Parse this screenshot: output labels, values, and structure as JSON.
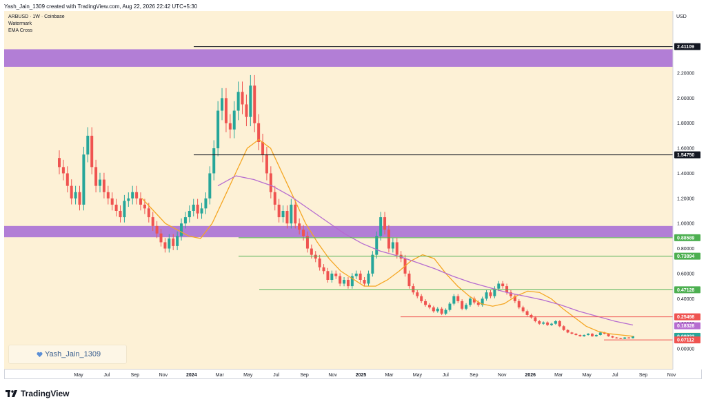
{
  "header": {
    "created_by": "Yash_Jain_1309 created with TradingView.com, Aug 22, 2026 22:42 UTC+5:30"
  },
  "legend": {
    "symbol": "ARBUSD · 1W · Coinbase",
    "line2": "Watermark",
    "line3": "EMA Cross"
  },
  "watermark": {
    "text": "Yash_Jain_1309",
    "icon": "heart-icon"
  },
  "currency_label": "USD",
  "brand": {
    "text": "TradingView",
    "icon": "tradingview-logo-icon"
  },
  "colors": {
    "background": "#fdf1d6",
    "up": "#26a69a",
    "down": "#ef5350",
    "ema_fast": "#f5a623",
    "ema_slow": "#b66cd0",
    "zone": "#a46ad6",
    "support": "#4caf50",
    "resistance_line": "#131722",
    "red_line": "#ef5350"
  },
  "chart_data": {
    "type": "candlestick",
    "symbol": "ARBUSD",
    "timeframe": "1W",
    "exchange": "Coinbase",
    "ylim": [
      0,
      2.5
    ],
    "y_ticks": [
      "2.20000",
      "2.00000",
      "1.80000",
      "1.60000",
      "1.40000",
      "1.20000",
      "1.00000",
      "0.80000",
      "0.60000",
      "0.40000",
      "0.20000",
      "0.00000"
    ],
    "x_ticks": [
      "May",
      "Jul",
      "Sep",
      "Nov",
      "2024",
      "Mar",
      "May",
      "Jul",
      "Sep",
      "Nov",
      "2025",
      "Mar",
      "May",
      "Jul",
      "Sep",
      "Nov",
      "2026",
      "Mar",
      "May",
      "Jul",
      "Sep",
      "Nov"
    ],
    "bold_x_ticks": [
      "2024",
      "2025",
      "2026"
    ],
    "price_labels": [
      {
        "text": "2.41109",
        "value": 2.41109,
        "color": "#131722",
        "bg": "#131722"
      },
      {
        "text": "1.54750",
        "value": 1.5475,
        "color": "#131722",
        "bg": "#131722"
      },
      {
        "text": "0.88589",
        "value": 0.88589,
        "color": "#4caf50",
        "bg": "#4caf50"
      },
      {
        "text": "0.73894",
        "value": 0.73894,
        "color": "#4caf50",
        "bg": "#4caf50"
      },
      {
        "text": "0.47128",
        "value": 0.47128,
        "color": "#4caf50",
        "bg": "#4caf50"
      },
      {
        "text": "0.25498",
        "value": 0.25498,
        "color": "#ef5350",
        "bg": "#ef5350"
      },
      {
        "text": "0.18328",
        "value": 0.18328,
        "color": "#b66cd0",
        "bg": "#b66cd0"
      },
      {
        "text": "0.09996",
        "value": 0.09996,
        "color": "#f5a623",
        "bg": "#f5a623"
      },
      {
        "text": "0.09933",
        "value": 0.09933,
        "color": "#26a69a",
        "bg": "#26a69a"
      },
      {
        "text": "0.07112",
        "value": 0.07112,
        "color": "#ef5350",
        "bg": "#ef5350"
      }
    ],
    "zones": [
      {
        "from": 2.25,
        "to": 2.39
      },
      {
        "from": 0.89,
        "to": 0.98
      }
    ],
    "weekly_closes": [
      1.45,
      1.4,
      1.3,
      1.2,
      1.25,
      1.15,
      1.55,
      1.7,
      1.45,
      1.3,
      1.35,
      1.25,
      1.2,
      1.15,
      1.1,
      1.05,
      1.18,
      1.2,
      1.25,
      1.2,
      1.15,
      1.12,
      1.05,
      0.98,
      0.92,
      0.85,
      0.8,
      0.88,
      0.82,
      0.9,
      1.0,
      1.05,
      1.1,
      1.15,
      1.08,
      1.12,
      1.2,
      1.4,
      1.6,
      1.9,
      2.0,
      1.8,
      1.75,
      1.9,
      2.05,
      1.95,
      1.85,
      2.1,
      1.8,
      1.65,
      1.55,
      1.4,
      1.25,
      1.15,
      1.05,
      1.1,
      1.0,
      1.15,
      1.0,
      0.95,
      0.9,
      0.8,
      0.75,
      0.72,
      0.65,
      0.62,
      0.55,
      0.6,
      0.58,
      0.52,
      0.55,
      0.5,
      0.58,
      0.6,
      0.55,
      0.52,
      0.6,
      0.75,
      0.9,
      1.05,
      0.95,
      0.8,
      0.85,
      0.75,
      0.72,
      0.6,
      0.5,
      0.45,
      0.42,
      0.38,
      0.35,
      0.33,
      0.3,
      0.32,
      0.28,
      0.31,
      0.36,
      0.42,
      0.38,
      0.32,
      0.35,
      0.4,
      0.37,
      0.35,
      0.4,
      0.45,
      0.42,
      0.48,
      0.52,
      0.5,
      0.45,
      0.42,
      0.38,
      0.33,
      0.3,
      0.27,
      0.25,
      0.22,
      0.2,
      0.21,
      0.19,
      0.2,
      0.22,
      0.18,
      0.15,
      0.13,
      0.12,
      0.11,
      0.1,
      0.11,
      0.12,
      0.1,
      0.11,
      0.13,
      0.12,
      0.1,
      0.09,
      0.085,
      0.08,
      0.09,
      0.085,
      0.1
    ],
    "ema_fast": [
      1.2,
      1.1,
      1.0,
      0.95,
      0.9,
      0.88,
      1.0,
      1.2,
      1.4,
      1.6,
      1.67,
      1.6,
      1.4,
      1.2,
      1.0,
      0.85,
      0.72,
      0.62,
      0.56,
      0.5,
      0.5,
      0.55,
      0.62,
      0.7,
      0.75,
      0.72,
      0.6,
      0.5,
      0.42,
      0.36,
      0.34,
      0.36,
      0.42,
      0.46,
      0.45,
      0.4,
      0.32,
      0.25,
      0.18,
      0.14,
      0.12,
      0.11,
      0.1
    ],
    "ema_slow": [
      1.3,
      1.38,
      1.35,
      1.3,
      1.22,
      1.12,
      1.02,
      0.92,
      0.84,
      0.78,
      0.74,
      0.69,
      0.64,
      0.58,
      0.53,
      0.49,
      0.45,
      0.42,
      0.39,
      0.35,
      0.3,
      0.26,
      0.22,
      0.19
    ]
  }
}
